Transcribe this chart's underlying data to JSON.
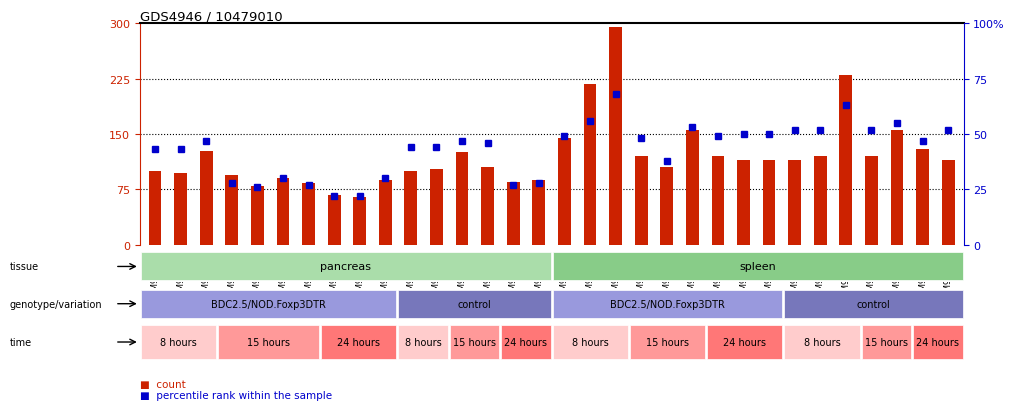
{
  "title": "GDS4946 / 10479010",
  "samples": [
    "GSM957812",
    "GSM957813",
    "GSM957814",
    "GSM957805",
    "GSM957806",
    "GSM957807",
    "GSM957808",
    "GSM957809",
    "GSM957810",
    "GSM957811",
    "GSM957828",
    "GSM957829",
    "GSM957824",
    "GSM957825",
    "GSM957826",
    "GSM957827",
    "GSM957821",
    "GSM957822",
    "GSM957823",
    "GSM957815",
    "GSM957816",
    "GSM957817",
    "GSM957818",
    "GSM957819",
    "GSM957820",
    "GSM957834",
    "GSM957835",
    "GSM957836",
    "GSM957830",
    "GSM957831",
    "GSM957832",
    "GSM957833"
  ],
  "counts": [
    100,
    97,
    127,
    94,
    80,
    90,
    83,
    68,
    65,
    88,
    100,
    102,
    125,
    105,
    85,
    87,
    145,
    218,
    295,
    120,
    105,
    155,
    120,
    115,
    115,
    115,
    120,
    230,
    120,
    155,
    130,
    115
  ],
  "percentile_ranks": [
    43,
    43,
    47,
    28,
    26,
    30,
    27,
    22,
    22,
    30,
    44,
    44,
    47,
    46,
    27,
    28,
    49,
    56,
    68,
    48,
    38,
    53,
    49,
    50,
    50,
    52,
    52,
    63,
    52,
    55,
    47,
    52
  ],
  "ylim_left": [
    0,
    300
  ],
  "ylim_right": [
    0,
    100
  ],
  "yticks_left": [
    0,
    75,
    150,
    225,
    300
  ],
  "yticks_right": [
    0,
    25,
    50,
    75,
    100
  ],
  "bar_color": "#CC2200",
  "dot_color": "#0000CC",
  "groups": [
    {
      "label": "BDC2.5/NOD.Foxp3DTR",
      "start": 0,
      "end": 9,
      "color": "#9999DD"
    },
    {
      "label": "control",
      "start": 10,
      "end": 15,
      "color": "#7777BB"
    },
    {
      "label": "BDC2.5/NOD.Foxp3DTR",
      "start": 16,
      "end": 24,
      "color": "#9999DD"
    },
    {
      "label": "control",
      "start": 25,
      "end": 31,
      "color": "#7777BB"
    }
  ],
  "time_groups": [
    {
      "label": "8 hours",
      "start": 0,
      "end": 2,
      "color": "#FFCCCC"
    },
    {
      "label": "15 hours",
      "start": 3,
      "end": 6,
      "color": "#FF9999"
    },
    {
      "label": "24 hours",
      "start": 7,
      "end": 9,
      "color": "#FF7777"
    },
    {
      "label": "8 hours",
      "start": 10,
      "end": 11,
      "color": "#FFCCCC"
    },
    {
      "label": "15 hours",
      "start": 12,
      "end": 13,
      "color": "#FF9999"
    },
    {
      "label": "24 hours",
      "start": 14,
      "end": 15,
      "color": "#FF7777"
    },
    {
      "label": "8 hours",
      "start": 16,
      "end": 18,
      "color": "#FFCCCC"
    },
    {
      "label": "15 hours",
      "start": 19,
      "end": 21,
      "color": "#FF9999"
    },
    {
      "label": "24 hours",
      "start": 22,
      "end": 24,
      "color": "#FF7777"
    },
    {
      "label": "8 hours",
      "start": 25,
      "end": 27,
      "color": "#FFCCCC"
    },
    {
      "label": "15 hours",
      "start": 28,
      "end": 29,
      "color": "#FF9999"
    },
    {
      "label": "24 hours",
      "start": 30,
      "end": 31,
      "color": "#FF7777"
    }
  ],
  "tissue_groups": [
    {
      "label": "pancreas",
      "start": 0,
      "end": 15,
      "color": "#AADDAA"
    },
    {
      "label": "spleen",
      "start": 16,
      "end": 31,
      "color": "#88CC88"
    }
  ],
  "legend_count_color": "#CC2200",
  "legend_dot_color": "#0000CC",
  "left_axis_color": "#CC2200",
  "right_axis_color": "#0000CC"
}
